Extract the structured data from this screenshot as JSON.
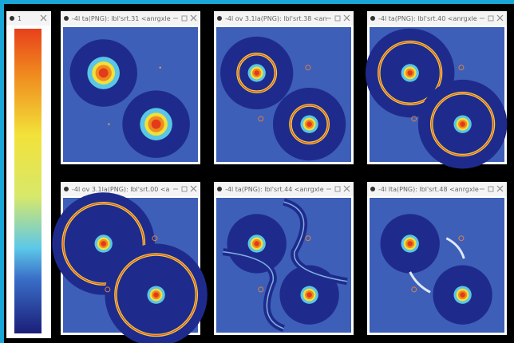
{
  "colorbar_window": {
    "title": "1"
  },
  "windows": [
    {
      "title": "-4l ta(PNG): lbl'srt.31 <anrgxle"
    },
    {
      "title": "-4l ov 3.1la(PNG): lbl'srt.38 <an"
    },
    {
      "title": "-4l ta(PNG): lbl'srt.40 <anrgxle"
    },
    {
      "title": "-4l ov 3.1la(PNG): lbl'srt.00 <a"
    },
    {
      "title": "-4l ta(PNG): lbl'srt.44 <anrgxle"
    },
    {
      "title": "-4l lta(PNG): lbl'srt.48 <anrgxle"
    }
  ]
}
